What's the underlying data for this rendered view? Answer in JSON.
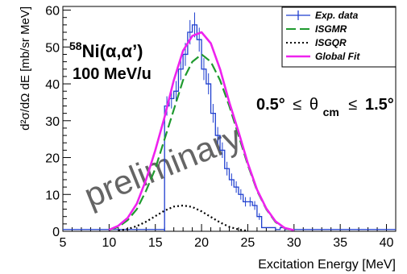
{
  "chart_data": {
    "type": "line",
    "title": "",
    "xlabel": "Excitation Energy [MeV]",
    "ylabel": "d²σ/dΩ dE [mb/sr MeV]",
    "xlim": [
      5,
      41
    ],
    "ylim": [
      0,
      61
    ],
    "x_ticks": [
      5,
      10,
      15,
      20,
      25,
      30,
      35,
      40
    ],
    "y_ticks": [
      0,
      10,
      20,
      30,
      40,
      50,
      60
    ],
    "grid": false,
    "legend_position": "top-right",
    "annotations": {
      "nucleus_mass": "58",
      "reaction": "Ni(α,α’)",
      "energy": "100 MeV/u",
      "angle_low": "0.5°",
      "le": "≤",
      "theta": "θ",
      "theta_sub": "cm",
      "angle_high": "1.5°",
      "watermark": "preliminary"
    },
    "series": [
      {
        "name": "Exp. data",
        "style": "histogram",
        "color": "#1f3fcf",
        "bin_width": 0.5,
        "bin_edges_start": 16,
        "values": [
          34,
          36,
          38,
          44,
          48,
          54,
          56,
          52,
          44,
          40,
          32,
          26,
          22,
          17,
          14,
          12,
          10,
          8,
          8,
          7,
          4,
          1,
          1,
          1,
          0.5,
          1,
          0.5,
          0.5,
          0.5,
          0.5,
          0.5,
          0.5,
          0.5,
          0.5,
          0.5,
          0.5,
          0.5,
          0.5,
          0.5,
          0.5,
          0.5,
          0.5,
          0.5,
          0.5,
          0.5,
          0.5,
          0.5,
          0.5,
          0.5,
          0.5
        ]
      },
      {
        "name": "ISGMR",
        "style": "dashed",
        "color": "#1f9a2f",
        "x": [
          10,
          11,
          12,
          13,
          14,
          15,
          16,
          17,
          18,
          19,
          20,
          21,
          22,
          23,
          24,
          25,
          26,
          27,
          28,
          29,
          30
        ],
        "y": [
          0.3,
          1.2,
          3,
          6,
          11,
          17,
          25,
          33,
          41,
          46,
          48,
          46,
          41,
          34,
          26,
          18,
          11,
          6,
          2.5,
          0.8,
          0.2
        ]
      },
      {
        "name": "ISGQR",
        "style": "dotted",
        "color": "#000000",
        "x": [
          11,
          12,
          13,
          14,
          15,
          16,
          17,
          18,
          19,
          20,
          21,
          22,
          23,
          24,
          25
        ],
        "y": [
          0.2,
          0.6,
          1.4,
          2.6,
          4.1,
          5.6,
          6.7,
          7,
          6.6,
          5.4,
          3.9,
          2.4,
          1.2,
          0.5,
          0.1
        ]
      },
      {
        "name": "Global Fit",
        "style": "solid",
        "color": "#ee22ee",
        "x": [
          10,
          11,
          12,
          13,
          14,
          15,
          16,
          17,
          18,
          19,
          20,
          21,
          22,
          23,
          24,
          25,
          26,
          27,
          28,
          29,
          30
        ],
        "y": [
          0.4,
          1.5,
          3.6,
          7.5,
          14,
          22,
          31,
          41,
          49,
          53,
          54,
          51,
          44,
          35,
          27,
          18.5,
          11.3,
          6.2,
          2.7,
          0.9,
          0.3
        ]
      }
    ]
  }
}
